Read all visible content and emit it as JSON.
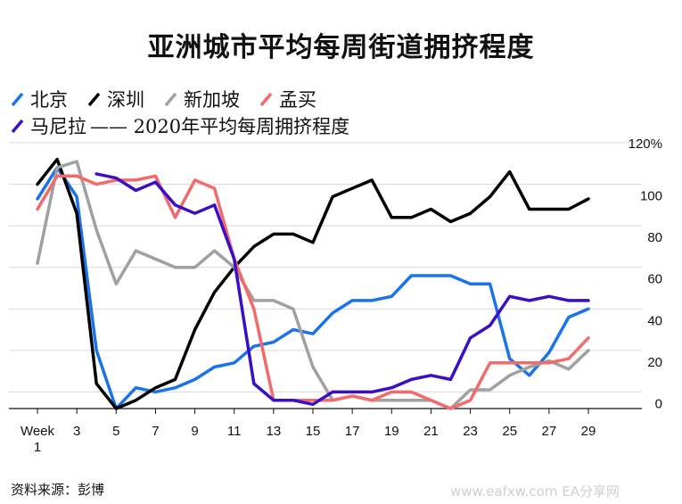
{
  "title": "亚洲城市平均每周街道拥挤程度",
  "legend": {
    "items": [
      {
        "label": "北京",
        "color": "#1a73e8"
      },
      {
        "label": "深圳",
        "color": "#000000"
      },
      {
        "label": "新加坡",
        "color": "#a0a0a0"
      },
      {
        "label": "孟买",
        "color": "#f46a6a"
      },
      {
        "label": "马尼拉",
        "color": "#3a0fc4"
      }
    ],
    "note": "—— 2020年平均每周拥挤程度"
  },
  "source": "资料来源：彭博",
  "watermark": "www.eafxw.com  EA分享网",
  "chart_data": {
    "type": "line",
    "title": "亚洲城市平均每周街道拥挤程度",
    "x_label_prefix": "Week",
    "x_ticks": [
      1,
      3,
      5,
      7,
      9,
      11,
      13,
      15,
      17,
      19,
      21,
      23,
      25,
      27,
      29
    ],
    "y_ticks": [
      0,
      20,
      40,
      60,
      80,
      100,
      120
    ],
    "y_tick_labels": [
      "0",
      "20",
      "40",
      "60",
      "80",
      "100",
      "120%"
    ],
    "ylim": [
      -8,
      120
    ],
    "xlim": [
      1,
      29
    ],
    "grid": true,
    "y_axis_side": "right",
    "series": [
      {
        "name": "北京",
        "color": "#1a73e8",
        "x": [
          1,
          2,
          3,
          4,
          5,
          6,
          7,
          8,
          9,
          10,
          11,
          12,
          13,
          14,
          15,
          16,
          17,
          18,
          19,
          20,
          21,
          22,
          23,
          24,
          25,
          26,
          27,
          28,
          29
        ],
        "values": [
          93,
          108,
          94,
          20,
          -8,
          2,
          0,
          2,
          6,
          12,
          14,
          22,
          24,
          30,
          28,
          38,
          44,
          44,
          46,
          56,
          56,
          56,
          52,
          52,
          16,
          8,
          19,
          36,
          40
        ]
      },
      {
        "name": "深圳",
        "color": "#000000",
        "x": [
          1,
          2,
          3,
          4,
          5,
          6,
          7,
          8,
          9,
          10,
          11,
          12,
          13,
          14,
          15,
          16,
          17,
          18,
          19,
          20,
          21,
          22,
          23,
          24,
          25,
          26,
          27,
          28,
          29
        ],
        "values": [
          100,
          112,
          86,
          4,
          -8,
          -4,
          2,
          6,
          30,
          48,
          60,
          70,
          76,
          76,
          72,
          94,
          98,
          102,
          84,
          84,
          88,
          82,
          86,
          94,
          106,
          88,
          88,
          88,
          93
        ]
      },
      {
        "name": "新加坡",
        "color": "#a0a0a0",
        "x": [
          1,
          2,
          3,
          4,
          5,
          6,
          7,
          8,
          9,
          10,
          11,
          12,
          13,
          14,
          15,
          16,
          17,
          18,
          19,
          20,
          21,
          22,
          23,
          24,
          25,
          26,
          27,
          28,
          29
        ],
        "values": [
          62,
          108,
          111,
          78,
          52,
          68,
          64,
          60,
          60,
          68,
          60,
          44,
          44,
          40,
          12,
          -4,
          -2,
          -4,
          -4,
          -4,
          -4,
          -8,
          1,
          1,
          8,
          12,
          15,
          11,
          20
        ]
      },
      {
        "name": "孟买",
        "color": "#f46a6a",
        "x": [
          1,
          2,
          3,
          4,
          5,
          6,
          7,
          8,
          9,
          10,
          11,
          12,
          13,
          14,
          15,
          16,
          17,
          18,
          19,
          20,
          21,
          22,
          23,
          24,
          25,
          26,
          27,
          28,
          29
        ],
        "values": [
          88,
          104,
          104,
          100,
          102,
          102,
          104,
          84,
          102,
          98,
          64,
          40,
          -4,
          -4,
          -4,
          -4,
          -2,
          -4,
          0,
          0,
          -4,
          -8,
          -4,
          14,
          14,
          14,
          14,
          16,
          26
        ]
      },
      {
        "name": "马尼拉",
        "color": "#3a0fc4",
        "x": [
          4,
          5,
          6,
          7,
          8,
          9,
          10,
          11,
          12,
          13,
          14,
          15,
          16,
          17,
          18,
          19,
          20,
          21,
          22,
          23,
          24,
          25,
          26,
          27,
          28,
          29
        ],
        "values": [
          105,
          103,
          97,
          101,
          90,
          86,
          90,
          64,
          4,
          -4,
          -4,
          -6,
          0,
          0,
          0,
          2,
          6,
          8,
          6,
          26,
          32,
          46,
          44,
          46,
          44,
          44
        ]
      }
    ]
  }
}
